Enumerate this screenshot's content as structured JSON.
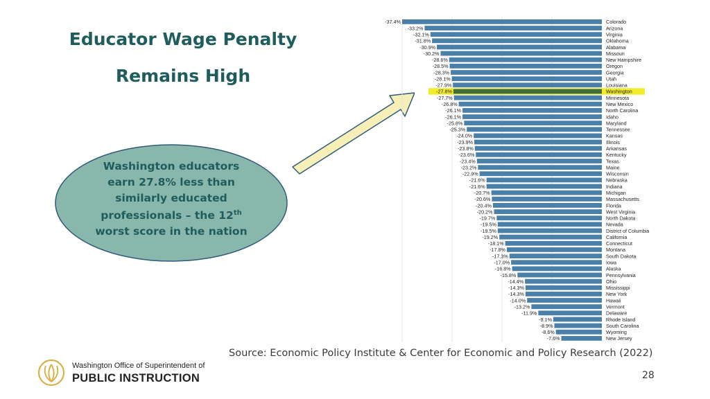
{
  "slide": {
    "title_line1": "Educator Wage Penalty",
    "title_line2": "Remains High",
    "callout": {
      "line1": "Washington educators",
      "line2": "earn 27.8% less than",
      "line3": "similarly educated",
      "line4_pre": "professionals – the 12",
      "line4_sup": "th",
      "line5": "worst score in the nation"
    },
    "source": "Source: Economic Policy Institute & Center for Economic and Policy Research (2022)",
    "page_number": "28",
    "logo": {
      "top_text": "Washington Office of Superintendent of",
      "bottom_text": "PUBLIC INSTRUCTION"
    }
  },
  "colors": {
    "bar": "#4a7fa8",
    "highlight_bar": "#3e6e3e",
    "highlight_band": "#f2ea2a",
    "title": "#1f5c5c",
    "callout_fill": "#8ab7ab",
    "arrow_fill": "#f7efb8",
    "arrow_stroke": "#2f5a7a"
  },
  "chart_data": {
    "type": "bar",
    "orientation": "horizontal",
    "highlight": "Washington",
    "categories": [
      "Colorado",
      "Arizona",
      "Virginia",
      "Oklahoma",
      "Alabama",
      "Missouri",
      "New Hampshire",
      "Oregon",
      "Georgia",
      "Utah",
      "Louisiana",
      "Washington",
      "Minnesota",
      "New Mexico",
      "North Carolina",
      "Idaho",
      "Maryland",
      "Tennessee",
      "Kansas",
      "Illinois",
      "Arkansas",
      "Kentucky",
      "Texas",
      "Maine",
      "Wisconsin",
      "Nebraska",
      "Indiana",
      "Michigan",
      "Massachusetts",
      "Florida",
      "West Virginia",
      "North Dakota",
      "Nevada",
      "District of Columbia",
      "California",
      "Connecticut",
      "Montana",
      "South Dakota",
      "Iowa",
      "Alaska",
      "Pennsylvania",
      "Ohio",
      "Mississippi",
      "New York",
      "Hawaii",
      "Vermont",
      "Delaware",
      "Rhode Island",
      "South Carolina",
      "Wyoming",
      "New Jersey"
    ],
    "values": [
      -37.4,
      -33.2,
      -32.1,
      -31.8,
      -30.9,
      -30.2,
      -28.6,
      -28.5,
      -28.3,
      -28.1,
      -27.9,
      -27.8,
      -27.7,
      -26.8,
      -26.1,
      -26.1,
      -25.8,
      -25.3,
      -24.0,
      -23.9,
      -23.8,
      -23.6,
      -23.4,
      -23.2,
      -22.9,
      -21.6,
      -21.6,
      -20.7,
      -20.6,
      -20.4,
      -20.2,
      -19.7,
      -19.5,
      -19.5,
      -19.2,
      -18.1,
      -17.8,
      -17.3,
      -17.0,
      -16.8,
      -15.8,
      -14.4,
      -14.3,
      -14.3,
      -14.0,
      -13.2,
      -11.9,
      -9.1,
      -8.9,
      -8.6,
      -7.6
    ],
    "labels": [
      "-37.4%",
      "-33.2%",
      "-32.1%",
      "-31.8%",
      "-30.9%",
      "-30.2%",
      "-28.6%",
      "-28.5%",
      "-28.3%",
      "-28.1%",
      "-27.9%",
      "-27.8%",
      "-27.7%",
      "-26.8%",
      "-26.1%",
      "-26.1%",
      "-25.8%",
      "-25.3%",
      "-24.0%",
      "-23.9%",
      "-23.8%",
      "-23.6%",
      "-23.4%",
      "-23.2%",
      "-22.9%",
      "-21.6%",
      "-21.6%",
      "-20.7%",
      "-20.6%",
      "-20.4%",
      "-20.2%",
      "-19.7%",
      "-19.5%",
      "-19.5%",
      "-19.2%",
      "-18.1%",
      "-17.8%",
      "-17.3%",
      "-17.0%",
      "-16.8%",
      "-15.8%",
      "-14.4%",
      "-14.3%",
      "-14.3%",
      "-14.0%",
      "-13.2%",
      "-11.9%",
      "-9.1%",
      "-8.9%",
      "-8.6%",
      "-7.6%"
    ],
    "xlim": [
      -40,
      0
    ]
  }
}
